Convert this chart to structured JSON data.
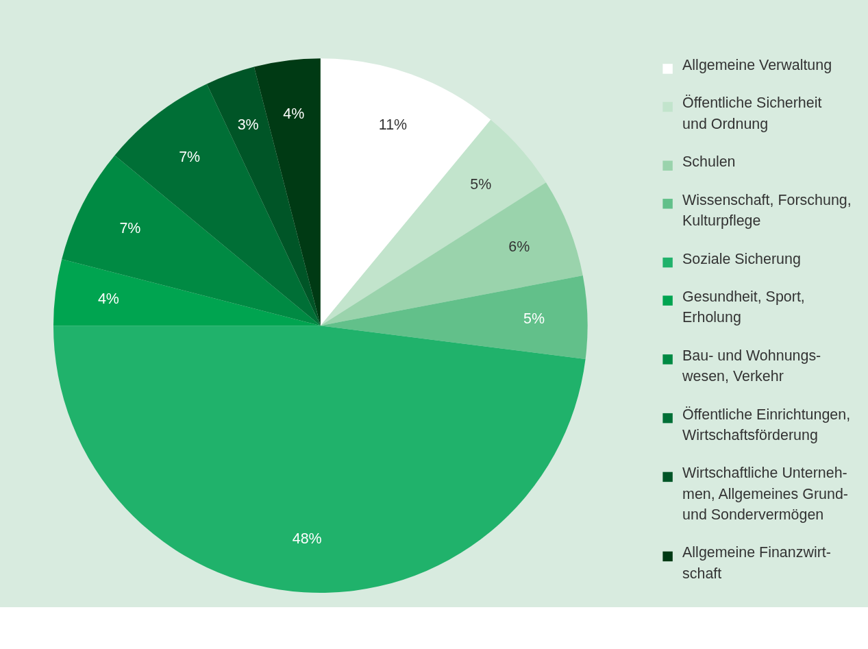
{
  "chart_data": {
    "type": "pie",
    "categories": [
      "Allgemeine Verwaltung",
      "Öffentliche Sicherheit\nund Ordnung",
      "Schulen",
      "Wissenschaft, Forschung,\nKulturpflege",
      "Soziale Sicherung",
      "Gesundheit, Sport,\nErholung",
      "Bau- und Wohnungs-\nwesen, Verkehr",
      "Öffentliche Einrichtungen,\nWirtschaftsförderung",
      "Wirtschaftliche Unterneh-\nmen, Allgemeines Grund-\nund Sondervermögen",
      "Allgemeine Finanzwirt-\nschaft"
    ],
    "values": [
      11,
      5,
      6,
      5,
      48,
      4,
      7,
      7,
      3,
      4
    ],
    "value_labels": [
      "11%",
      "5%",
      "6%",
      "5%",
      "48%",
      "4%",
      "7%",
      "7%",
      "3%",
      "4%"
    ],
    "colors": [
      "#ffffff",
      "#c2e4cc",
      "#9ad3ac",
      "#62c08a",
      "#20b26b",
      "#00a450",
      "#008a43",
      "#006f36",
      "#005527",
      "#003a14"
    ],
    "legend": "right"
  }
}
